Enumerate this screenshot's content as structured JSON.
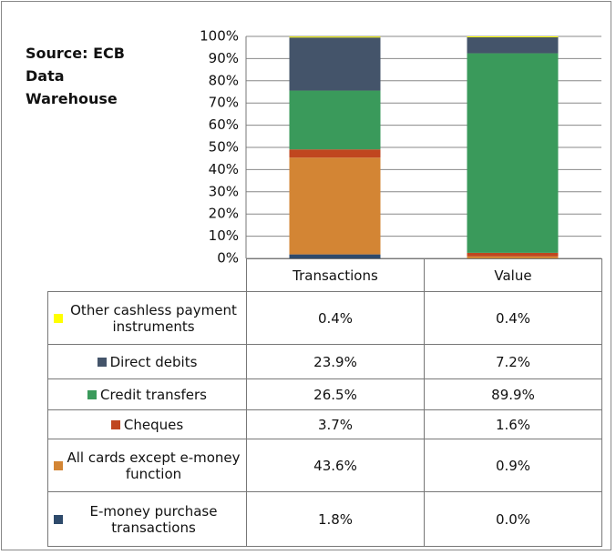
{
  "chart_data": {
    "type": "stacked_bar",
    "annotation": "Source: ECB Data Warehouse",
    "categories": [
      "Transactions",
      "Value"
    ],
    "ylim": [
      0,
      100
    ],
    "yticks": [
      {
        "value": 0,
        "label": "0%"
      },
      {
        "value": 10,
        "label": "10%"
      },
      {
        "value": 20,
        "label": "20%"
      },
      {
        "value": 30,
        "label": "30%"
      },
      {
        "value": 40,
        "label": "40%"
      },
      {
        "value": 50,
        "label": "50%"
      },
      {
        "value": 60,
        "label": "60%"
      },
      {
        "value": 70,
        "label": "70%"
      },
      {
        "value": 80,
        "label": "80%"
      },
      {
        "value": 90,
        "label": "90%"
      },
      {
        "value": 100,
        "label": "100%"
      }
    ],
    "grid": true,
    "series": [
      {
        "name": "E-money purchase transactions",
        "color": "#2e4a6b",
        "values": [
          1.8,
          0.0
        ],
        "value_labels": [
          "1.8%",
          "0.0%"
        ]
      },
      {
        "name": "All cards except e-money function",
        "color": "#d38534",
        "values": [
          43.6,
          0.9
        ],
        "value_labels": [
          "43.6%",
          "0.9%"
        ]
      },
      {
        "name": "Cheques",
        "color": "#c0461f",
        "values": [
          3.7,
          1.6
        ],
        "value_labels": [
          "3.7%",
          "1.6%"
        ]
      },
      {
        "name": "Credit transfers",
        "color": "#3a9a5b",
        "values": [
          26.5,
          89.9
        ],
        "value_labels": [
          "26.5%",
          "89.9%"
        ]
      },
      {
        "name": "Direct debits",
        "color": "#44546a",
        "values": [
          23.9,
          7.2
        ],
        "value_labels": [
          "23.9%",
          "7.2%"
        ]
      },
      {
        "name": "Other cashless payment instruments",
        "color": "#ffff00",
        "values": [
          0.4,
          0.4
        ],
        "value_labels": [
          "0.4%",
          "0.4%"
        ]
      }
    ]
  }
}
